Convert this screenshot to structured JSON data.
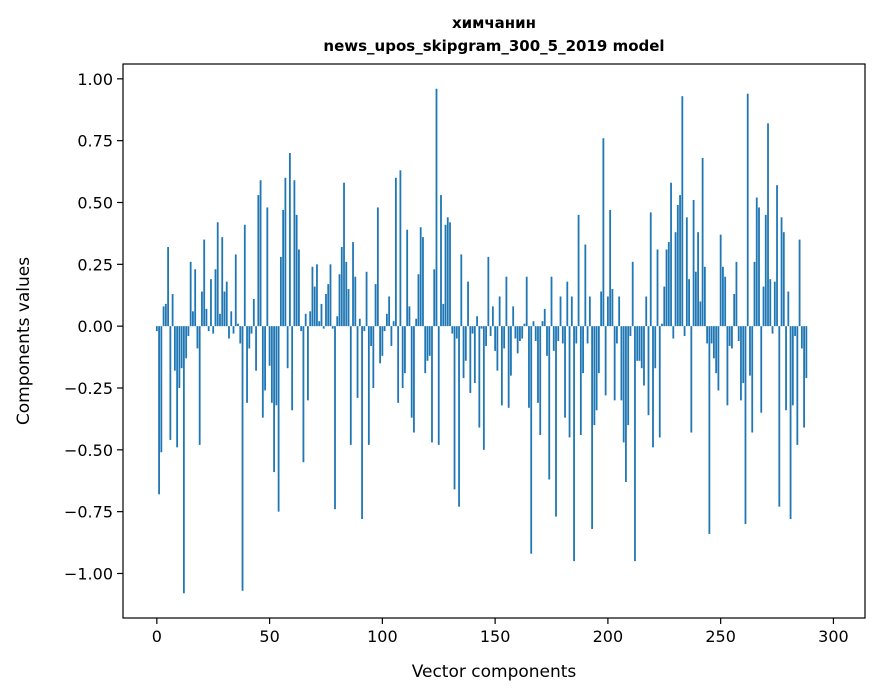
{
  "chart_data": {
    "type": "bar",
    "title_line1": "химчанин",
    "title_line2": "news_upos_skipgram_300_5_2019 model",
    "xlabel": "Vector components",
    "ylabel": "Components values",
    "xlim": [
      -15,
      314
    ],
    "ylim": [
      -1.18,
      1.06
    ],
    "xticks": [
      0,
      50,
      100,
      150,
      200,
      250,
      300
    ],
    "xtick_labels": [
      "0",
      "50",
      "100",
      "150",
      "200",
      "250",
      "300"
    ],
    "yticks": [
      1.0,
      0.75,
      0.5,
      0.25,
      0.0,
      -0.25,
      -0.5,
      -0.75,
      -1.0
    ],
    "ytick_labels": [
      "1.00",
      "0.75",
      "0.50",
      "0.25",
      "0.00",
      "−0.25",
      "−0.50",
      "−0.75",
      "−1.00"
    ],
    "bar_color": "#1f77b4",
    "grid": false,
    "values": [
      -0.02,
      -0.68,
      -0.51,
      0.08,
      0.09,
      0.32,
      -0.46,
      0.13,
      -0.18,
      -0.49,
      -0.25,
      -0.17,
      -1.08,
      -0.13,
      -0.04,
      0.26,
      0.06,
      0.23,
      -0.09,
      -0.48,
      0.14,
      0.35,
      0.07,
      -0.02,
      0.19,
      -0.03,
      0.23,
      0.42,
      0.05,
      0.36,
      0.14,
      0.18,
      -0.05,
      0.06,
      -0.03,
      0.29,
      0.01,
      -0.07,
      -1.07,
      0.41,
      -0.31,
      -0.09,
      -0.03,
      0.11,
      -0.18,
      0.53,
      0.59,
      -0.37,
      -0.26,
      0.48,
      -0.16,
      -0.31,
      -0.59,
      -0.32,
      -0.75,
      0.28,
      0.47,
      0.6,
      -0.17,
      0.7,
      -0.34,
      0.59,
      0.45,
      0.31,
      -0.02,
      -0.55,
      0.05,
      -0.3,
      0.06,
      0.24,
      0.16,
      0.25,
      0.02,
      0.09,
      -0.01,
      0.13,
      0.17,
      0.25,
      -0.01,
      -0.74,
      0.04,
      0.21,
      0.32,
      0.58,
      0.26,
      0.15,
      -0.48,
      0.34,
      0.2,
      -0.29,
      0.03,
      -0.78,
      -0.02,
      0.22,
      -0.48,
      -0.08,
      -0.25,
      0.17,
      0.48,
      -0.15,
      -0.12,
      -0.02,
      0.05,
      0.12,
      -0.08,
      0.02,
      0.6,
      -0.31,
      0.63,
      -0.25,
      -0.19,
      0.39,
      0.08,
      -0.37,
      -0.43,
      0.03,
      0.21,
      0.4,
      0.36,
      -0.19,
      -0.14,
      -0.12,
      -0.47,
      0.23,
      0.96,
      -0.48,
      0.53,
      0.09,
      0.41,
      0.44,
      0.42,
      -0.03,
      -0.66,
      -0.05,
      -0.73,
      0.29,
      -0.21,
      -0.14,
      0.18,
      -0.27,
      -0.03,
      -0.23,
      0.04,
      -0.41,
      -0.01,
      -0.5,
      -0.08,
      0.28,
      -0.04,
      0.08,
      -0.1,
      -0.18,
      0.12,
      -0.32,
      -0.09,
      0.2,
      -0.33,
      -0.2,
      0.08,
      -0.05,
      -0.11,
      -0.06,
      -0.05,
      0.01,
      0.2,
      -0.33,
      -0.92,
      0.02,
      -0.06,
      -0.31,
      -0.44,
      0.02,
      0.07,
      -0.12,
      -0.62,
      0.2,
      -0.1,
      -0.77,
      -0.06,
      0.12,
      -0.07,
      -0.37,
      0.18,
      -0.45,
      0.12,
      -0.95,
      -0.07,
      0.45,
      -0.44,
      -0.19,
      0.33,
      -0.07,
      0.12,
      -0.82,
      -0.4,
      -0.34,
      -0.19,
      0.14,
      0.76,
      -0.28,
      0.12,
      0.47,
      0.15,
      -0.3,
      -0.07,
      0.12,
      -0.3,
      -0.47,
      -0.63,
      -0.4,
      -0.04,
      0.26,
      -0.95,
      -0.14,
      -0.14,
      -0.17,
      -0.24,
      0.12,
      -0.36,
      0.46,
      -0.49,
      -0.17,
      0.31,
      -0.45,
      0.01,
      0.16,
      0.31,
      0.34,
      0.58,
      -0.05,
      0.38,
      0.49,
      0.53,
      0.93,
      -0.04,
      0.44,
      0.19,
      -0.43,
      0.51,
      0.22,
      0.38,
      0.1,
      0.68,
      0.24,
      -0.07,
      -0.84,
      -0.07,
      -0.13,
      -0.19,
      -0.26,
      0.37,
      0.24,
      0.2,
      -0.32,
      -0.08,
      -0.09,
      0.13,
      0.26,
      -0.06,
      -0.3,
      -0.23,
      -0.8,
      0.94,
      -0.2,
      -0.43,
      0.26,
      0.52,
      0.48,
      -0.35,
      0.16,
      0.45,
      0.82,
      0.19,
      -0.03,
      0.18,
      0.57,
      -0.73,
      0.44,
      0.38,
      -0.34,
      0.14,
      -0.78,
      -0.32,
      -0.04,
      -0.48,
      0.35,
      -0.09,
      -0.41,
      -0.21
    ]
  }
}
